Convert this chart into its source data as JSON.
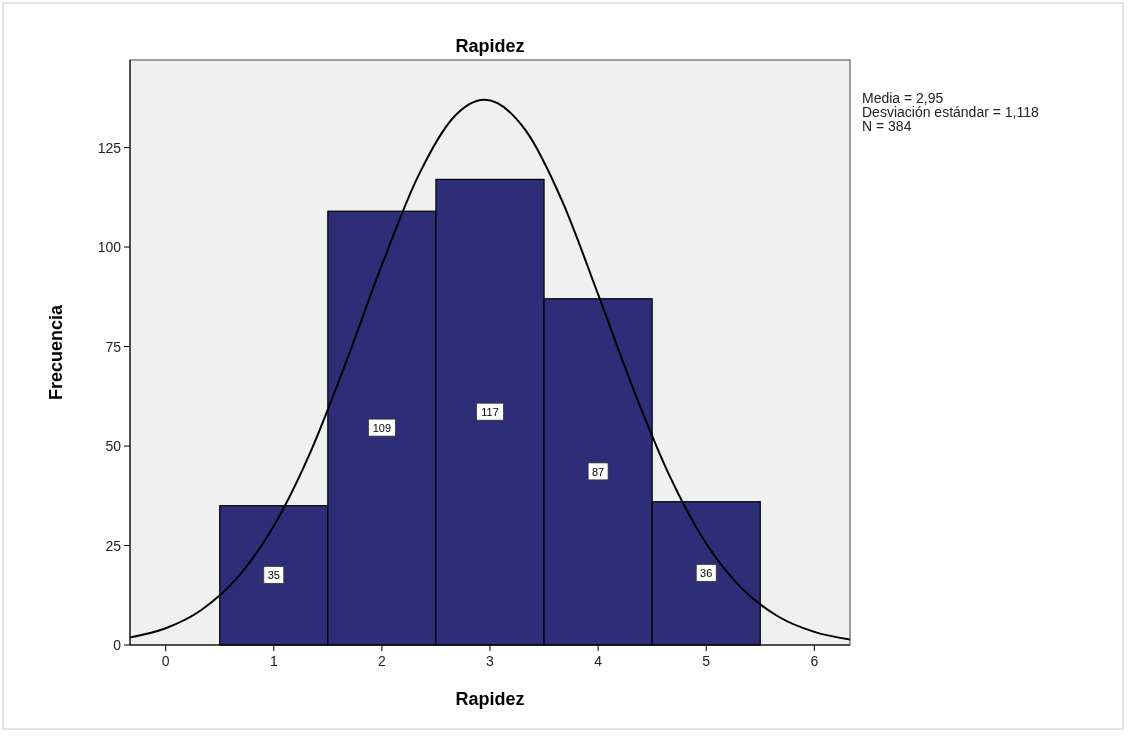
{
  "chart_data": {
    "type": "histogram",
    "title": "Rapidez",
    "xlabel": "Rapidez",
    "ylabel": "Frecuencia",
    "bins": [
      0.5,
      1.5,
      2.5,
      3.5,
      4.5,
      5.5
    ],
    "values": [
      35,
      109,
      117,
      87,
      36
    ],
    "color": "#2e2e78",
    "value_labels": [
      "35",
      "109",
      "117",
      "87",
      "36"
    ],
    "series": [
      {
        "type": "line",
        "color": "#000000",
        "x": [
          -0.33,
          0,
          0.33,
          0.67,
          1,
          1.33,
          1.67,
          2,
          2.33,
          2.67,
          2.95,
          3.33,
          3.67,
          4,
          4.33,
          4.67,
          5,
          5.33,
          5.67,
          6,
          6.33
        ],
        "values": [
          1.9,
          4.2,
          8.8,
          17.1,
          29.9,
          47.9,
          71.2,
          95.5,
          117.5,
          132.8,
          137,
          129.3,
          111.4,
          88.1,
          64,
          42,
          25.5,
          14.2,
          7.1,
          3.3,
          1.4
        ]
      }
    ],
    "xlim": [
      -0.33,
      6.33
    ],
    "ylim": [
      0,
      147
    ],
    "xticks": [
      0,
      1,
      2,
      3,
      4,
      5,
      6
    ],
    "yticks": [
      0,
      25,
      50,
      75,
      100,
      125
    ],
    "grid": false,
    "annotations": [
      "Media = 2,95",
      "Desviación estándar = 1,118",
      "N = 384"
    ]
  }
}
